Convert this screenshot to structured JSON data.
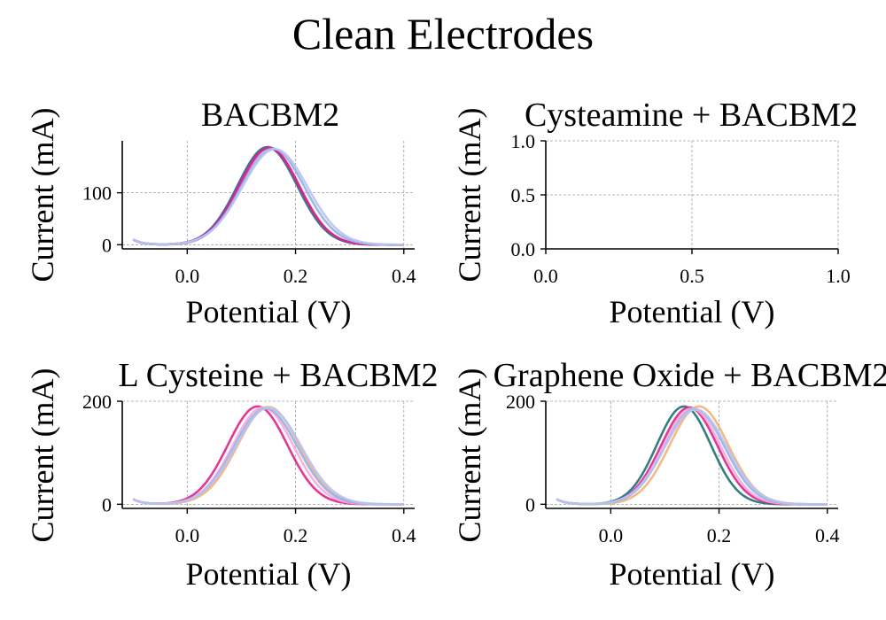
{
  "figure": {
    "title": "Clean Electrodes"
  },
  "colors": {
    "teal": "#1f6f78",
    "magenta": "#e0218a",
    "violet": "#8e44ad",
    "pink": "#f7a8d8",
    "orange": "#f2b179",
    "blue": "#8fb3e8",
    "lavender": "#b9c2f0",
    "grid": "#a0a0a0"
  },
  "chart_data": [
    {
      "type": "line",
      "title": "BACBM2",
      "xlabel": "Potential (V)",
      "ylabel": "Current (mA)",
      "xlim": [
        -0.12,
        0.42
      ],
      "ylim": [
        -8,
        200
      ],
      "xticks": [
        0.0,
        0.2,
        0.4
      ],
      "xtick_labels": [
        "0.0",
        "0.2",
        "0.4"
      ],
      "yticks": [
        0,
        100
      ],
      "ytick_labels": [
        "0",
        "100"
      ],
      "grid": true,
      "x_range": [
        -0.1,
        0.4
      ],
      "series": [
        {
          "color": "teal",
          "peak_x": 0.148,
          "peak_y": 188,
          "width": 0.055
        },
        {
          "color": "violet",
          "peak_x": 0.15,
          "peak_y": 186,
          "width": 0.056
        },
        {
          "color": "magenta",
          "peak_x": 0.152,
          "peak_y": 187,
          "width": 0.055
        },
        {
          "color": "blue",
          "peak_x": 0.158,
          "peak_y": 185,
          "width": 0.058
        },
        {
          "color": "lavender",
          "peak_x": 0.162,
          "peak_y": 184,
          "width": 0.06
        }
      ]
    },
    {
      "type": "line",
      "title": "Cysteamine + BACBM2",
      "xlabel": "Potential (V)",
      "ylabel": "Current (mA)",
      "xlim": [
        0,
        1
      ],
      "ylim": [
        0,
        1
      ],
      "xticks": [
        0.0,
        0.5,
        1.0
      ],
      "xtick_labels": [
        "0.0",
        "0.5",
        "1.0"
      ],
      "yticks": [
        0.0,
        0.5,
        1.0
      ],
      "ytick_labels": [
        "0.0",
        "0.5",
        "1.0"
      ],
      "grid": true,
      "series": []
    },
    {
      "type": "line",
      "title": "L Cysteine + BACBM2",
      "xlabel": "Potential (V)",
      "ylabel": "Current (mA)",
      "xlim": [
        -0.12,
        0.42
      ],
      "ylim": [
        -8,
        200
      ],
      "xticks": [
        0.0,
        0.2,
        0.4
      ],
      "xtick_labels": [
        "0.0",
        "0.2",
        "0.4"
      ],
      "yticks": [
        0,
        200
      ],
      "ytick_labels": [
        "0",
        "200"
      ],
      "grid": true,
      "x_range": [
        -0.1,
        0.4
      ],
      "series": [
        {
          "color": "magenta",
          "peak_x": 0.13,
          "peak_y": 190,
          "width": 0.055
        },
        {
          "color": "pink",
          "peak_x": 0.14,
          "peak_y": 188,
          "width": 0.056
        },
        {
          "color": "orange",
          "peak_x": 0.15,
          "peak_y": 189,
          "width": 0.057
        },
        {
          "color": "blue",
          "peak_x": 0.145,
          "peak_y": 186,
          "width": 0.058
        },
        {
          "color": "lavender",
          "peak_x": 0.15,
          "peak_y": 187,
          "width": 0.06
        }
      ]
    },
    {
      "type": "line",
      "title": "Graphene Oxide + BACBM2",
      "xlabel": "Potential (V)",
      "ylabel": "Current (mA)",
      "xlim": [
        -0.12,
        0.42
      ],
      "ylim": [
        -8,
        200
      ],
      "xticks": [
        0.0,
        0.2,
        0.4
      ],
      "xtick_labels": [
        "0.0",
        "0.2",
        "0.4"
      ],
      "yticks": [
        0,
        200
      ],
      "ytick_labels": [
        "0",
        "200"
      ],
      "grid": true,
      "x_range": [
        -0.1,
        0.4
      ],
      "series": [
        {
          "color": "teal",
          "peak_x": 0.135,
          "peak_y": 190,
          "width": 0.05
        },
        {
          "color": "magenta",
          "peak_x": 0.145,
          "peak_y": 188,
          "width": 0.052
        },
        {
          "color": "pink",
          "peak_x": 0.15,
          "peak_y": 186,
          "width": 0.053
        },
        {
          "color": "orange",
          "peak_x": 0.163,
          "peak_y": 190,
          "width": 0.054
        },
        {
          "color": "blue",
          "peak_x": 0.155,
          "peak_y": 185,
          "width": 0.055
        },
        {
          "color": "lavender",
          "peak_x": 0.157,
          "peak_y": 184,
          "width": 0.057
        }
      ]
    }
  ]
}
